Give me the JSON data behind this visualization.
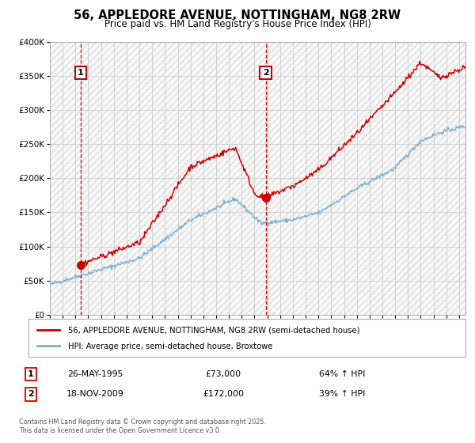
{
  "title": "56, APPLEDORE AVENUE, NOTTINGHAM, NG8 2RW",
  "subtitle": "Price paid vs. HM Land Registry's House Price Index (HPI)",
  "legend_line1": "56, APPLEDORE AVENUE, NOTTINGHAM, NG8 2RW (semi-detached house)",
  "legend_line2": "HPI: Average price, semi-detached house, Broxtowe",
  "footnote": "Contains HM Land Registry data © Crown copyright and database right 2025.\nThis data is licensed under the Open Government Licence v3.0.",
  "purchase1_date": "26-MAY-1995",
  "purchase1_price": "£73,000",
  "purchase1_hpi": "64% ↑ HPI",
  "purchase1_x": 1995.4,
  "purchase1_y": 73000,
  "purchase2_date": "18-NOV-2009",
  "purchase2_price": "£172,000",
  "purchase2_hpi": "39% ↑ HPI",
  "purchase2_x": 2009.88,
  "purchase2_y": 172000,
  "red_color": "#cc0000",
  "blue_color": "#7bafd4",
  "background_color": "#ffffff",
  "grid_color": "#cccccc",
  "hatch_color": "#dddddd",
  "ylim": [
    0,
    400000
  ],
  "xlim_start": 1993,
  "xlim_end": 2025.5,
  "yticks": [
    0,
    50000,
    100000,
    150000,
    200000,
    250000,
    300000,
    350000,
    400000
  ]
}
